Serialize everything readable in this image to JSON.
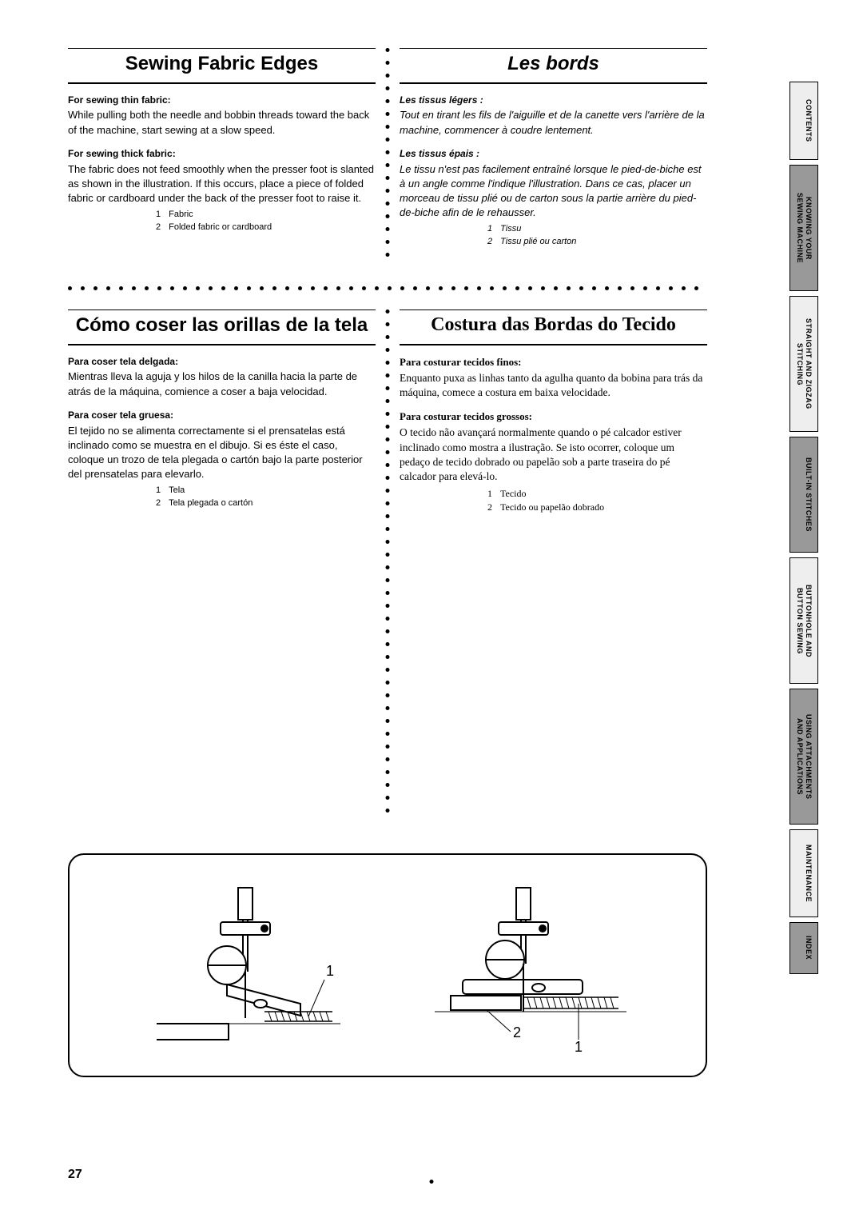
{
  "en": {
    "title": "Sewing Fabric Edges",
    "sub1": "For sewing thin fabric:",
    "text1": "While pulling both the needle and bobbin threads toward the back of the machine, start sewing at a slow speed.",
    "sub2": "For sewing thick fabric:",
    "text2": "The fabric does not feed smoothly when the presser foot is slanted as shown in the illustration. If this occurs, place a piece of folded fabric or cardboard under the back of the presser foot to raise it.",
    "list": [
      "1",
      "Fabric",
      "2",
      "Folded fabric or cardboard"
    ]
  },
  "fr": {
    "title": "Les bords",
    "sub1": "Les tissus légers :",
    "text1": "Tout en tirant les fils de l'aiguille et de la canette vers l'arrière de la machine, commencer à coudre lentement.",
    "sub2": "Les tissus épais :",
    "text2": "Le tissu n'est pas facilement entraîné lorsque le pied-de-biche est à un angle comme l'indique l'illustration. Dans ce cas, placer un morceau de tissu plié ou de carton sous la partie arrière du pied-de-biche afin de le rehausser.",
    "list": [
      "1",
      "Tissu",
      "2",
      "Tissu plié ou carton"
    ]
  },
  "es": {
    "title": "Cómo coser las orillas de la tela",
    "sub1": "Para coser tela delgada:",
    "text1": "Mientras lleva la aguja y los hilos de la canilla hacia la parte de atrás de la máquina, comience a coser a baja velocidad.",
    "sub2": "Para coser tela gruesa:",
    "text2": "El tejido no se alimenta correctamente si el prensatelas está inclinado como se muestra en el dibujo. Si es éste el caso, coloque un trozo de tela plegada o cartón bajo la parte posterior del prensatelas para elevarlo.",
    "list": [
      "1",
      "Tela",
      "2",
      "Tela plegada o cartón"
    ]
  },
  "pt": {
    "title": "Costura das Bordas do Tecido",
    "sub1": "Para costurar tecidos finos:",
    "text1": "Enquanto puxa as linhas tanto da agulha quanto da bobina para trás da máquina, comece a costura em baixa velocidade.",
    "sub2": "Para costurar tecidos grossos:",
    "text2": "O tecido não avançará normalmente quando o pé calcador estiver inclinado como mostra a ilustração. Se isto ocorrer, coloque um pedaço de tecido dobrado ou papelão sob a parte traseira do pé calcador para elevá-lo.",
    "list": [
      "1",
      "Tecido",
      "2",
      "Tecido ou papelão dobrado"
    ]
  },
  "tabs": [
    "CONTENTS",
    "KNOWING YOUR\nSEWING MACHINE",
    "STRAIGHT AND ZIGZAG\nSTITCHING",
    "BUILT-IN STITCHES",
    "BUTTONHOLE AND\nBUTTON SEWING",
    "USING ATTACHMENTS\nAND APPLICATIONS",
    "MAINTENANCE",
    "INDEX"
  ],
  "tab_heights": [
    98,
    158,
    170,
    145,
    158,
    170,
    110,
    65
  ],
  "tab_shades": [
    "light",
    "dark",
    "light",
    "dark",
    "light",
    "dark",
    "light",
    "dark"
  ],
  "page_number": "27",
  "diagram_labels": {
    "d1_1": "1",
    "d2_1": "1",
    "d2_2": "2"
  }
}
